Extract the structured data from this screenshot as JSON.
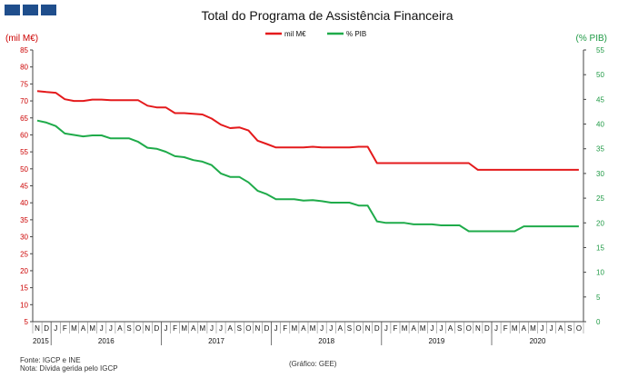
{
  "chart_data": {
    "type": "line",
    "title": "Total do Programa de Assistência Financeira",
    "left_axis_unit": "(mil M€)",
    "right_axis_unit": "(% PIB)",
    "y_left": {
      "min": 5,
      "max": 85,
      "step": 5,
      "ticks": [
        "5",
        "10",
        "15",
        "20",
        "25",
        "30",
        "35",
        "40",
        "45",
        "50",
        "55",
        "60",
        "65",
        "70",
        "75",
        "80",
        "85"
      ]
    },
    "y_right": {
      "min": 0,
      "max": 55,
      "step": 5,
      "ticks": [
        "0",
        "5",
        "10",
        "15",
        "20",
        "25",
        "30",
        "35",
        "40",
        "45",
        "50",
        "55"
      ]
    },
    "months": [
      "N",
      "D",
      "J",
      "F",
      "M",
      "A",
      "M",
      "J",
      "J",
      "A",
      "S",
      "O",
      "N",
      "D",
      "J",
      "F",
      "M",
      "A",
      "M",
      "J",
      "J",
      "A",
      "S",
      "O",
      "N",
      "D",
      "J",
      "F",
      "M",
      "A",
      "M",
      "J",
      "J",
      "A",
      "S",
      "O",
      "N",
      "D",
      "J",
      "F",
      "M",
      "A",
      "M",
      "J",
      "J",
      "A",
      "S",
      "O",
      "N",
      "D",
      "J",
      "F",
      "M",
      "A",
      "M",
      "J",
      "J",
      "A",
      "S",
      "O"
    ],
    "years": [
      {
        "label": "2015",
        "start": 0,
        "count": 2
      },
      {
        "label": "2016",
        "start": 2,
        "count": 12
      },
      {
        "label": "2017",
        "start": 14,
        "count": 12
      },
      {
        "label": "2018",
        "start": 26,
        "count": 12
      },
      {
        "label": "2019",
        "start": 38,
        "count": 12
      },
      {
        "label": "2020",
        "start": 50,
        "count": 10
      }
    ],
    "series": [
      {
        "name": "mil M€",
        "axis": "left",
        "color": "#e41a1c",
        "values": [
          72.9,
          72.6,
          72.4,
          70.5,
          70.0,
          70.0,
          70.4,
          70.4,
          70.2,
          70.2,
          70.2,
          70.2,
          68.6,
          68.1,
          68.1,
          66.4,
          66.4,
          66.2,
          66.0,
          64.8,
          63.0,
          62.0,
          62.2,
          61.3,
          58.3,
          57.3,
          56.3,
          56.3,
          56.3,
          56.3,
          56.5,
          56.3,
          56.3,
          56.3,
          56.3,
          56.5,
          56.5,
          51.7,
          51.7,
          51.7,
          51.7,
          51.7,
          51.7,
          51.7,
          51.7,
          51.7,
          51.7,
          51.7,
          49.7,
          49.7,
          49.7,
          49.7,
          49.7,
          49.7,
          49.7,
          49.7,
          49.7,
          49.7,
          49.7,
          49.7
        ]
      },
      {
        "name": "% PIB",
        "axis": "right",
        "color": "#1fab4a",
        "values": [
          40.7,
          40.3,
          39.6,
          38.1,
          37.8,
          37.5,
          37.7,
          37.7,
          37.1,
          37.1,
          37.1,
          36.4,
          35.2,
          35.0,
          34.4,
          33.5,
          33.3,
          32.7,
          32.4,
          31.7,
          30.0,
          29.3,
          29.3,
          28.2,
          26.5,
          25.8,
          24.8,
          24.8,
          24.8,
          24.5,
          24.6,
          24.4,
          24.1,
          24.1,
          24.1,
          23.5,
          23.5,
          20.3,
          20.0,
          20.0,
          20.0,
          19.7,
          19.7,
          19.7,
          19.5,
          19.5,
          19.5,
          18.3,
          18.3,
          18.3,
          18.3,
          18.3,
          18.3,
          19.3,
          19.3,
          19.3,
          19.3,
          19.3,
          19.3,
          19.3
        ]
      }
    ],
    "legend_position": "top"
  },
  "footer": {
    "source": "Fonte: IGCP e INE",
    "note": "Nota: Dívida gerida pelo IGCP",
    "credit": "(Gráfico: GEE)"
  }
}
